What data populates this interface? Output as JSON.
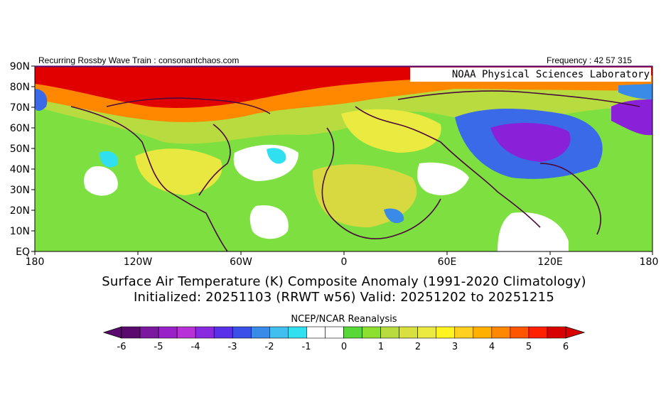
{
  "header": {
    "left": "Recurring Rossby Wave Train : consonantchaos.com",
    "right": "Frequency : 42 57 315"
  },
  "credit": "NOAA Physical Sciences Laboratory",
  "map": {
    "lat_labels": [
      "90N",
      "80N",
      "70N",
      "60N",
      "50N",
      "40N",
      "30N",
      "20N",
      "10N",
      "EQ"
    ],
    "lon_labels": [
      "180",
      "120W",
      "60W",
      "0",
      "60E",
      "120E",
      "180"
    ],
    "extent": {
      "lon": [
        -180,
        180
      ],
      "lat": [
        0,
        90
      ]
    }
  },
  "title": {
    "line1": "Surface Air Temperature (K) Composite Anomaly (1991-2020 Climatology)",
    "line2": "Initialized: 20251103 (RRWT w56) Valid: 20251202 to 20251215"
  },
  "colorbar": {
    "title": "NCEP/NCAR Reanalysis",
    "tick_labels": [
      "-6",
      "-5",
      "-4",
      "-3",
      "-2",
      "-1",
      "0",
      "1",
      "2",
      "3",
      "4",
      "5",
      "6"
    ],
    "colors": [
      "#5a0a6e",
      "#7a18a0",
      "#9a20c8",
      "#b830d8",
      "#8a2ae0",
      "#5a30e8",
      "#3a50e8",
      "#3a8ae8",
      "#40c0ee",
      "#30e0f0",
      "#ffffff",
      "#ffffff",
      "#58d838",
      "#8ee030",
      "#b8dc40",
      "#d8e040",
      "#eaea40",
      "#fff420",
      "#ffd020",
      "#ffb000",
      "#ff8800",
      "#ff5400",
      "#ff2000",
      "#d80000"
    ],
    "low_end": "#5a0a6e",
    "high_end": "#d80000"
  },
  "anomaly_colors": {
    "strong_warm": "#d80000",
    "warm": "#ff8800",
    "mild_warm": "#e8e840",
    "slight_warm": "#7ee040",
    "neutral": "#ffffff",
    "slight_cold": "#30e0f0",
    "cold": "#3a6ae8",
    "strong_cold": "#8a20d8",
    "coastline": "#4a0a3a"
  }
}
